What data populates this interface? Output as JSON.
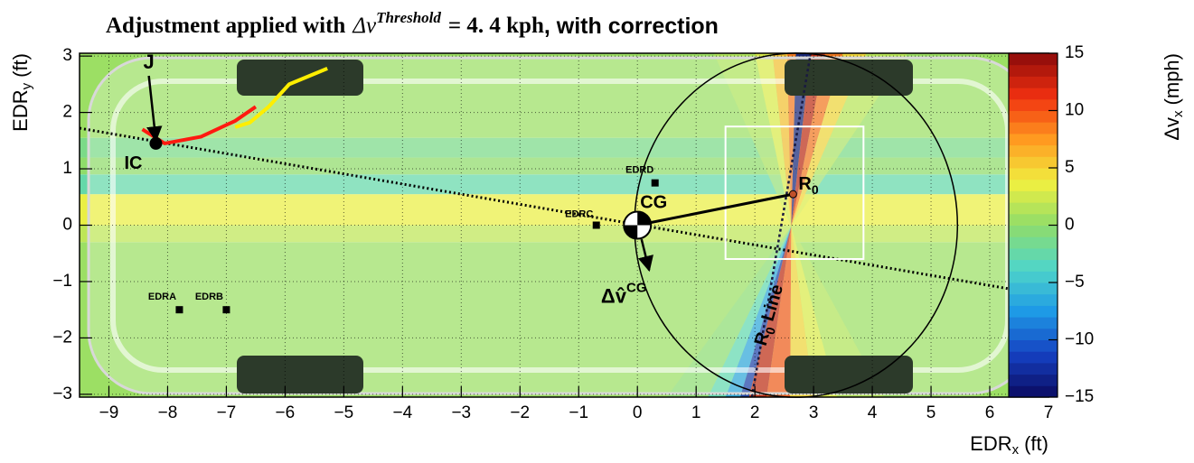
{
  "chart_data": {
    "type": "heatmap",
    "title": {
      "before": "Adjustment applied with",
      "math": "Δv",
      "sup": "Threshold",
      "eq": "= 4. 4 kph",
      "after": ", with correction"
    },
    "xlabel": {
      "text": "EDR",
      "sub": "x",
      "unit": "(ft)"
    },
    "ylabel": {
      "text": "EDR",
      "sub": "y",
      "unit": "(ft)"
    },
    "zlabel": {
      "text": "Δv",
      "sub": "x",
      "unit": "(mph)"
    },
    "xlim": [
      -9.5,
      7
    ],
    "ylim": [
      -3.05,
      3.05
    ],
    "zlim": [
      -15,
      15
    ],
    "xticks": [
      {
        "value": -9,
        "label": "−9"
      },
      {
        "value": -8,
        "label": "−8"
      },
      {
        "value": -7,
        "label": "−7"
      },
      {
        "value": -6,
        "label": "−6"
      },
      {
        "value": -5,
        "label": "−5"
      },
      {
        "value": -4,
        "label": "−4"
      },
      {
        "value": -3,
        "label": "−3"
      },
      {
        "value": -2,
        "label": "−2"
      },
      {
        "value": -1,
        "label": "−1"
      },
      0,
      1,
      2,
      3,
      4,
      5,
      6,
      7
    ],
    "yticks": [
      {
        "value": -3,
        "label": "−3"
      },
      {
        "value": -2,
        "label": "−2"
      },
      {
        "value": -1,
        "label": "−1"
      },
      0,
      1,
      2,
      3
    ],
    "zticks": [
      {
        "value": -15,
        "label": "−15"
      },
      {
        "value": -10,
        "label": "−10"
      },
      {
        "value": -5,
        "label": "−5"
      },
      0,
      5,
      10,
      15
    ],
    "grid": true,
    "palette": [
      "#0b0a60",
      "#1540c0",
      "#1e9ae6",
      "#50d6c8",
      "#8fdc6a",
      "#f0f040",
      "#ff9a20",
      "#f03010",
      "#8a0a0a"
    ],
    "bands": [
      {
        "y": [
          -3.05,
          -0.3
        ],
        "value": 0.5
      },
      {
        "y": [
          -0.3,
          0.0
        ],
        "value": 1.8
      },
      {
        "y": [
          0.0,
          0.55
        ],
        "value": 3.5
      },
      {
        "y": [
          0.55,
          0.9
        ],
        "value": -2.5
      },
      {
        "y": [
          0.9,
          1.2
        ],
        "value": 0
      },
      {
        "y": [
          1.2,
          1.55
        ],
        "value": -1.2
      },
      {
        "y": [
          1.55,
          3.05
        ],
        "value": 0.5
      }
    ],
    "fan": {
      "pivot": [
        2.62,
        -0.02
      ],
      "top": [
        {
          "x": [
            1.3,
            2.0
          ],
          "value": 1.8
        },
        {
          "x": [
            3.9,
            4.6
          ],
          "value": 2.5
        },
        {
          "x": [
            2.0,
            2.3
          ],
          "value": 3
        },
        {
          "x": [
            2.3,
            2.55
          ],
          "value": 6
        },
        {
          "x": [
            2.55,
            2.7
          ],
          "value": 9
        },
        {
          "x": [
            2.7,
            2.95
          ],
          "value": -14
        },
        {
          "x": [
            2.95,
            3.2
          ],
          "value": 13
        },
        {
          "x": [
            3.2,
            3.5
          ],
          "value": 9
        },
        {
          "x": [
            3.5,
            3.9
          ],
          "value": 5
        }
      ],
      "bottom": [
        {
          "x": [
            0.5,
            1.2
          ],
          "value": -0.8
        },
        {
          "x": [
            3.4,
            4.2
          ],
          "value": 2
        },
        {
          "x": [
            1.2,
            1.5
          ],
          "value": -3
        },
        {
          "x": [
            1.5,
            1.75
          ],
          "value": -7
        },
        {
          "x": [
            1.75,
            1.9
          ],
          "value": -12
        },
        {
          "x": [
            1.9,
            2.2
          ],
          "value": 13
        },
        {
          "x": [
            2.2,
            2.6
          ],
          "value": 10
        },
        {
          "x": [
            2.6,
            3.0
          ],
          "value": 5
        },
        {
          "x": [
            3.0,
            3.4
          ],
          "value": 3
        }
      ]
    },
    "circle": {
      "x": 2.7,
      "y": 0.0,
      "r": 2.75
    },
    "box": {
      "x": [
        1.5,
        3.85
      ],
      "y": [
        -0.6,
        1.75
      ]
    },
    "ic_line": {
      "x": [
        -9.5,
        7
      ],
      "y": [
        1.72,
        -1.25
      ]
    },
    "r0_line": {
      "x": [
        1.95,
        2.95
      ],
      "y": [
        -3.05,
        3.05
      ],
      "label": "R",
      "sub": "0",
      "text": "Line"
    },
    "trajectories": [
      {
        "color": "#ff1a10",
        "x": [
          -8.43,
          -8.05,
          -7.43,
          -6.85,
          -6.5
        ],
        "y": [
          1.7,
          1.45,
          1.57,
          1.85,
          2.1
        ]
      },
      {
        "color": "#ffee00",
        "x": [
          -6.85,
          -6.6,
          -6.28,
          -5.93,
          -5.28
        ],
        "y": [
          1.74,
          1.82,
          2.1,
          2.5,
          2.78
        ]
      }
    ],
    "points": [
      {
        "label": "IC",
        "x": -8.2,
        "y": 1.45,
        "marker": "circle"
      },
      {
        "label": "EDRA",
        "x": -7.8,
        "y": -1.5,
        "marker": "square"
      },
      {
        "label": "EDRB",
        "x": -7.0,
        "y": -1.5,
        "marker": "square"
      },
      {
        "label": "EDRC",
        "x": -0.7,
        "y": 0.0,
        "marker": "square"
      },
      {
        "label": "EDRD",
        "x": 0.3,
        "y": 0.75,
        "marker": "square"
      },
      {
        "label": "CG",
        "x": 0.0,
        "y": 0.0,
        "marker": "cg"
      },
      {
        "label": "R",
        "sub": "0",
        "x": 2.65,
        "y": 0.55,
        "marker": "ring"
      }
    ],
    "arrows": [
      {
        "label": "J",
        "from": [
          -8.32,
          2.65
        ],
        "to": [
          -8.2,
          1.5
        ]
      },
      {
        "label": "Δv̂",
        "sup": "CG",
        "from": [
          0.07,
          -0.25
        ],
        "to": [
          0.2,
          -0.8
        ]
      }
    ]
  }
}
